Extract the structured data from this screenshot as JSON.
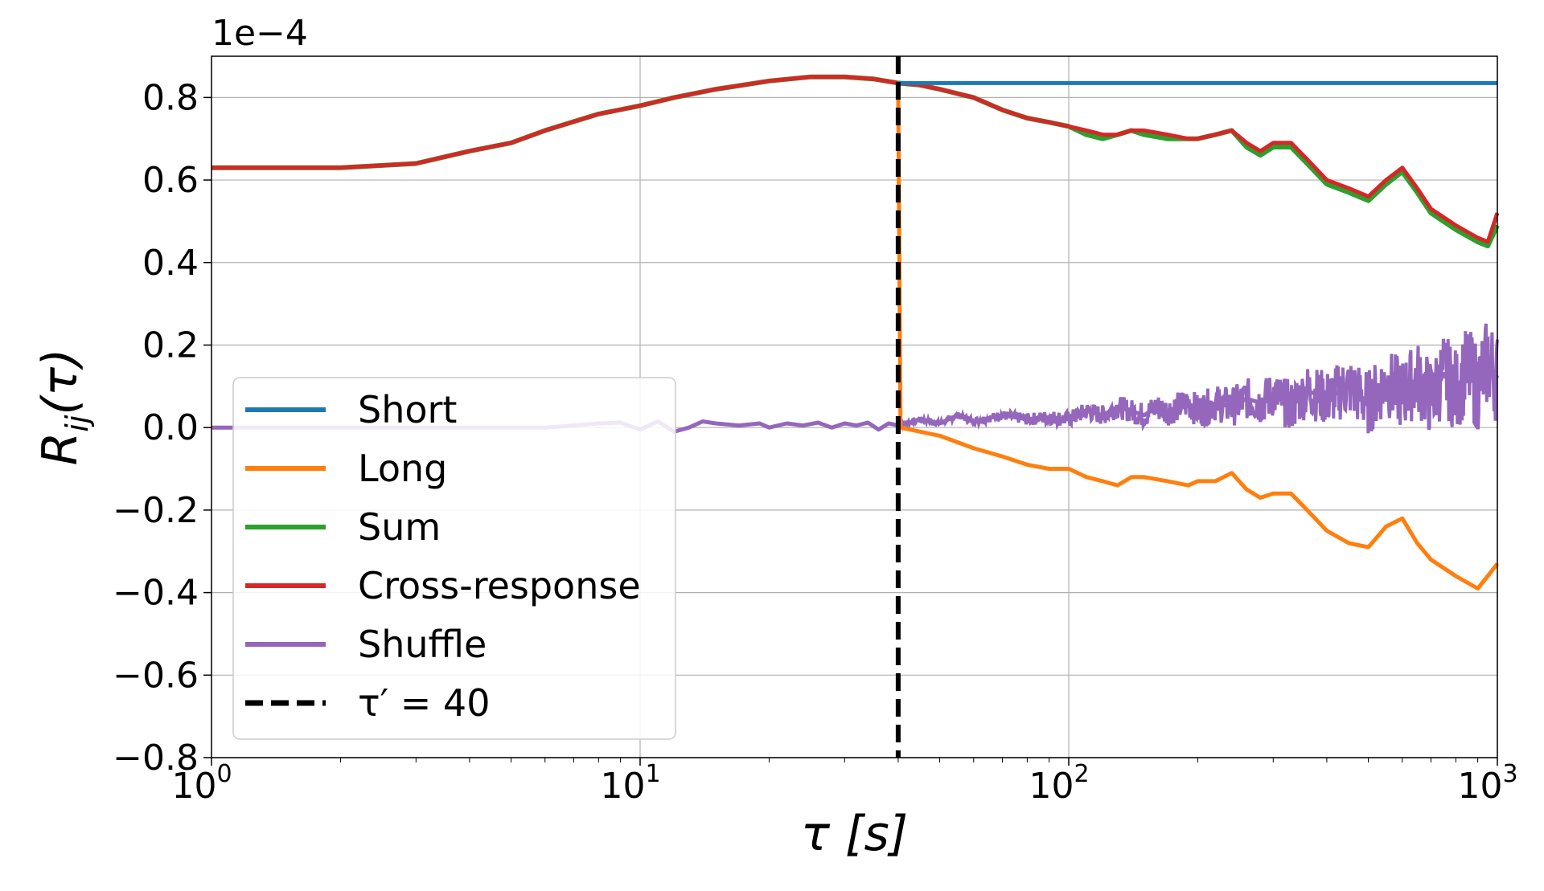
{
  "chart_data": {
    "type": "line",
    "title": "",
    "xlabel": "τ [s]",
    "ylabel": "R_ij(τ)",
    "x_scale": "log",
    "xlim": [
      1,
      1000
    ],
    "ylim": [
      -0.8,
      0.9
    ],
    "y_offset_label": "1e−4",
    "grid": true,
    "legend_placement": "lower-left",
    "x_ticks": [
      {
        "value": 1,
        "base": "10",
        "exp": "0"
      },
      {
        "value": 10,
        "base": "10",
        "exp": "1"
      },
      {
        "value": 100,
        "base": "10",
        "exp": "2"
      },
      {
        "value": 1000,
        "base": "10",
        "exp": "3"
      }
    ],
    "y_ticks": [
      {
        "value": -0.8,
        "label": "−0.8"
      },
      {
        "value": -0.6,
        "label": "−0.6"
      },
      {
        "value": -0.4,
        "label": "−0.4"
      },
      {
        "value": -0.2,
        "label": "−0.2"
      },
      {
        "value": 0.0,
        "label": "0.0"
      },
      {
        "value": 0.2,
        "label": "0.2"
      },
      {
        "value": 0.4,
        "label": "0.4"
      },
      {
        "value": 0.6,
        "label": "0.6"
      },
      {
        "value": 0.8,
        "label": "0.8"
      }
    ],
    "vline": {
      "x": 40,
      "label": "τ′ = 40",
      "color": "#000000",
      "dash": true
    },
    "series": [
      {
        "name": "Short",
        "color": "#1f77b4",
        "x": [
          40,
          1000
        ],
        "y": [
          0.835,
          0.835
        ]
      },
      {
        "name": "Long",
        "color": "#ff7f0e",
        "x": [
          40,
          40.5,
          45,
          50,
          60,
          70,
          80,
          90,
          100,
          110,
          120,
          130,
          140,
          150,
          170,
          190,
          200,
          220,
          240,
          260,
          280,
          300,
          330,
          360,
          400,
          450,
          500,
          550,
          600,
          650,
          700,
          800,
          900,
          950,
          1000
        ],
        "y": [
          0.835,
          0.0,
          -0.01,
          -0.02,
          -0.05,
          -0.07,
          -0.09,
          -0.1,
          -0.1,
          -0.12,
          -0.13,
          -0.14,
          -0.12,
          -0.12,
          -0.13,
          -0.14,
          -0.13,
          -0.13,
          -0.11,
          -0.15,
          -0.17,
          -0.16,
          -0.16,
          -0.2,
          -0.25,
          -0.28,
          -0.29,
          -0.24,
          -0.22,
          -0.28,
          -0.32,
          -0.36,
          -0.39,
          -0.36,
          -0.33
        ]
      },
      {
        "name": "Sum",
        "color": "#2ca02c",
        "x": [
          1,
          2,
          3,
          4,
          5,
          6,
          8,
          10,
          12,
          15,
          20,
          25,
          30,
          35,
          40,
          45,
          50,
          60,
          70,
          80,
          90,
          100,
          110,
          120,
          130,
          140,
          150,
          170,
          190,
          200,
          220,
          240,
          260,
          280,
          300,
          330,
          360,
          400,
          450,
          500,
          550,
          600,
          650,
          700,
          800,
          900,
          950,
          1000
        ],
        "y": [
          0.63,
          0.63,
          0.64,
          0.67,
          0.69,
          0.72,
          0.76,
          0.78,
          0.8,
          0.82,
          0.84,
          0.85,
          0.85,
          0.845,
          0.835,
          0.83,
          0.82,
          0.8,
          0.77,
          0.75,
          0.74,
          0.73,
          0.71,
          0.7,
          0.71,
          0.72,
          0.71,
          0.7,
          0.7,
          0.7,
          0.71,
          0.72,
          0.68,
          0.66,
          0.68,
          0.68,
          0.64,
          0.59,
          0.57,
          0.55,
          0.59,
          0.62,
          0.57,
          0.52,
          0.48,
          0.45,
          0.44,
          0.49
        ]
      },
      {
        "name": "Cross-response",
        "color": "#d62728",
        "x": [
          1,
          2,
          3,
          4,
          5,
          6,
          8,
          10,
          12,
          15,
          20,
          25,
          30,
          35,
          40,
          45,
          50,
          60,
          70,
          80,
          90,
          100,
          110,
          120,
          130,
          140,
          150,
          170,
          190,
          200,
          220,
          240,
          260,
          280,
          300,
          330,
          360,
          400,
          450,
          500,
          550,
          600,
          650,
          700,
          800,
          900,
          950,
          1000
        ],
        "y": [
          0.63,
          0.63,
          0.64,
          0.67,
          0.69,
          0.72,
          0.76,
          0.78,
          0.8,
          0.82,
          0.84,
          0.85,
          0.85,
          0.845,
          0.835,
          0.83,
          0.82,
          0.8,
          0.77,
          0.75,
          0.74,
          0.73,
          0.72,
          0.71,
          0.71,
          0.72,
          0.72,
          0.71,
          0.7,
          0.7,
          0.71,
          0.72,
          0.69,
          0.67,
          0.69,
          0.69,
          0.65,
          0.6,
          0.58,
          0.56,
          0.6,
          0.63,
          0.58,
          0.53,
          0.49,
          0.46,
          0.45,
          0.52
        ]
      },
      {
        "name": "Shuffle",
        "color": "#9467bd",
        "x": [
          1,
          2,
          3,
          4,
          5,
          6,
          7,
          8,
          9,
          10,
          11,
          12,
          13,
          14,
          15,
          17,
          19,
          20,
          22,
          24,
          26,
          28,
          30,
          32,
          34,
          36,
          38,
          40,
          45,
          50,
          55,
          60,
          70,
          80,
          90,
          100,
          110,
          120,
          130,
          140,
          150,
          160,
          170,
          180,
          190,
          200,
          220,
          240,
          260,
          280,
          300,
          330,
          360,
          400,
          450,
          500,
          550,
          600,
          650,
          700,
          750,
          800,
          850,
          900,
          950,
          1000
        ],
        "y": [
          0.0,
          0.0,
          0.0,
          0.0,
          0.0,
          0.0,
          0.005,
          0.01,
          0.012,
          -0.005,
          0.015,
          -0.01,
          0.0,
          0.015,
          0.01,
          0.005,
          0.01,
          0.0,
          0.01,
          0.005,
          0.012,
          0.0,
          0.01,
          0.005,
          0.012,
          -0.005,
          0.01,
          0.005,
          0.02,
          0.01,
          0.03,
          0.015,
          0.03,
          0.02,
          0.025,
          0.02,
          0.04,
          0.03,
          0.05,
          0.04,
          0.03,
          0.05,
          0.04,
          0.05,
          0.06,
          0.04,
          0.06,
          0.05,
          0.07,
          0.06,
          0.08,
          0.05,
          0.09,
          0.07,
          0.1,
          0.06,
          0.11,
          0.08,
          0.12,
          0.07,
          0.13,
          0.09,
          0.14,
          0.1,
          0.16,
          0.12
        ],
        "noise_envelope": [
          0.0,
          0.11
        ]
      }
    ],
    "legend": [
      "Short",
      "Long",
      "Sum",
      "Cross-response",
      "Shuffle",
      "τ′ = 40"
    ]
  }
}
